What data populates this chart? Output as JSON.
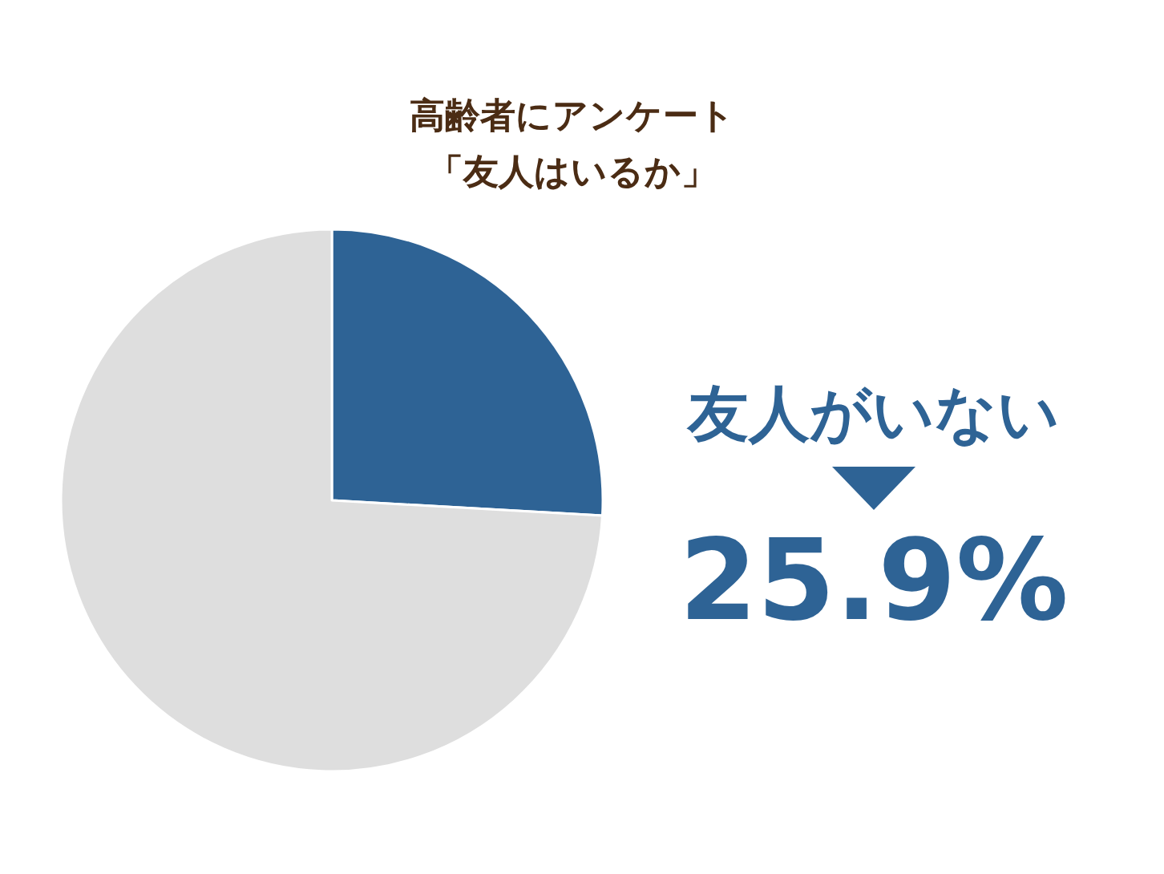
{
  "chart_data": {
    "type": "pie",
    "title": "高齢者にアンケート",
    "subtitle": "「友人はいるか」",
    "categories": [
      "友人がいない",
      null
    ],
    "values": [
      25.9,
      74.1
    ],
    "colors": [
      "#2e6395",
      "#dedede"
    ],
    "value_labels": [
      "25.9%",
      null
    ]
  }
}
